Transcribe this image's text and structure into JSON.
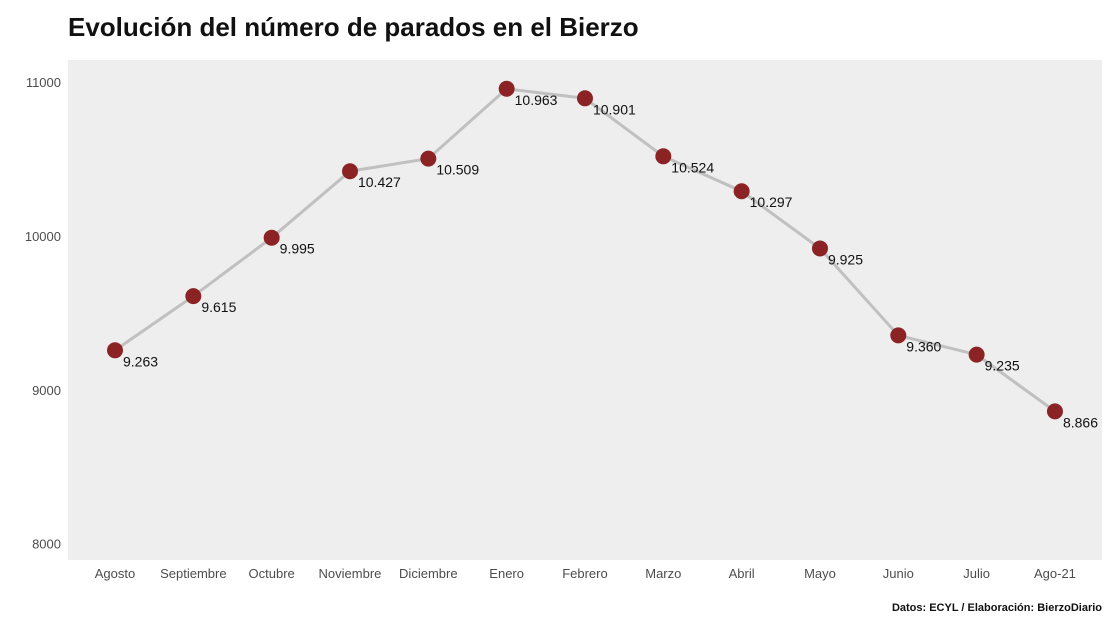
{
  "title": "Evolución del número de parados en el Bierzo",
  "caption": "Datos: ECYL / Elaboración: BierzoDiario",
  "colors": {
    "panel_background": "#eeeeee",
    "line": "#c0c0c0",
    "point": "#8b2325"
  },
  "chart_data": {
    "type": "line",
    "title": "Evolución del número de parados en el Bierzo",
    "xlabel": "",
    "ylabel": "",
    "categories": [
      "Agosto",
      "Septiembre",
      "Octubre",
      "Noviembre",
      "Diciembre",
      "Enero",
      "Febrero",
      "Marzo",
      "Abril",
      "Mayo",
      "Junio",
      "Julio",
      "Ago-21"
    ],
    "series": [
      {
        "values": [
          9263,
          9615,
          9995,
          10427,
          10509,
          10963,
          10901,
          10524,
          10297,
          9925,
          9360,
          9235,
          8866
        ],
        "labels": [
          "9.263",
          "9.615",
          "9.995",
          "10.427",
          "10.509",
          "10.963",
          "10.901",
          "10.524",
          "10.297",
          "9.925",
          "9.360",
          "9.235",
          "8.866"
        ]
      }
    ],
    "yticks": [
      "8000",
      "9000",
      "10000",
      "11000"
    ],
    "ylim": [
      7900,
      11150
    ],
    "grid": false,
    "legend": "none"
  }
}
